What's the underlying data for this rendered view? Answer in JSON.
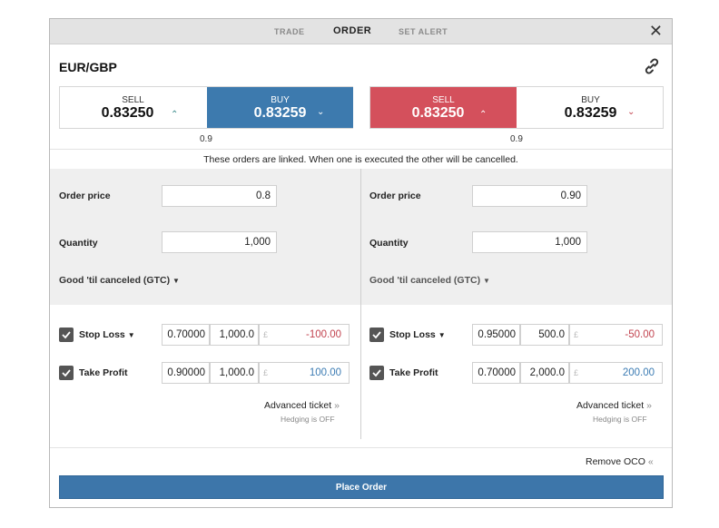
{
  "tabs": [
    {
      "label": "TRADE"
    },
    {
      "label": "ORDER"
    },
    {
      "label": "SET ALERT"
    }
  ],
  "close_icon": "close-icon",
  "instrument": "EUR/GBP",
  "link_icon": "link-icon",
  "colors": {
    "buy_blue": "#3d7aae",
    "sell_red": "#d4505c",
    "negative": "#c2434f",
    "positive": "#3b7bb3"
  },
  "left": {
    "sell_label": "SELL",
    "sell_price": "0.83250",
    "buy_label": "BUY",
    "buy_price": "0.83259",
    "spread": "0.9",
    "order_price_label": "Order price",
    "order_price": "0.8",
    "quantity_label": "Quantity",
    "quantity": "1,000",
    "gtc": "Good 'til canceled (GTC)",
    "stop_loss": {
      "label": "Stop Loss",
      "level": "0.70000",
      "qty": "1,000.0",
      "currency": "£",
      "pnl": "-100.00"
    },
    "take_profit": {
      "label": "Take Profit",
      "level": "0.90000",
      "qty": "1,000.0",
      "currency": "£",
      "pnl": "100.00"
    },
    "advanced": "Advanced ticket",
    "hedging": "Hedging is OFF"
  },
  "right": {
    "sell_label": "SELL",
    "sell_price": "0.83250",
    "buy_label": "BUY",
    "buy_price": "0.83259",
    "spread": "0.9",
    "order_price_label": "Order price",
    "order_price": "0.90",
    "quantity_label": "Quantity",
    "quantity": "1,000",
    "gtc": "Good 'til canceled (GTC)",
    "stop_loss": {
      "label": "Stop Loss",
      "level": "0.95000",
      "qty": "500.0",
      "currency": "£",
      "pnl": "-50.00"
    },
    "take_profit": {
      "label": "Take Profit",
      "level": "0.70000",
      "qty": "2,000.0",
      "currency": "£",
      "pnl": "200.00"
    },
    "advanced": "Advanced ticket",
    "hedging": "Hedging is OFF"
  },
  "linked_message": "These orders are linked. When one is executed the other will be cancelled.",
  "remove_oco": "Remove OCO",
  "place_order": "Place Order"
}
